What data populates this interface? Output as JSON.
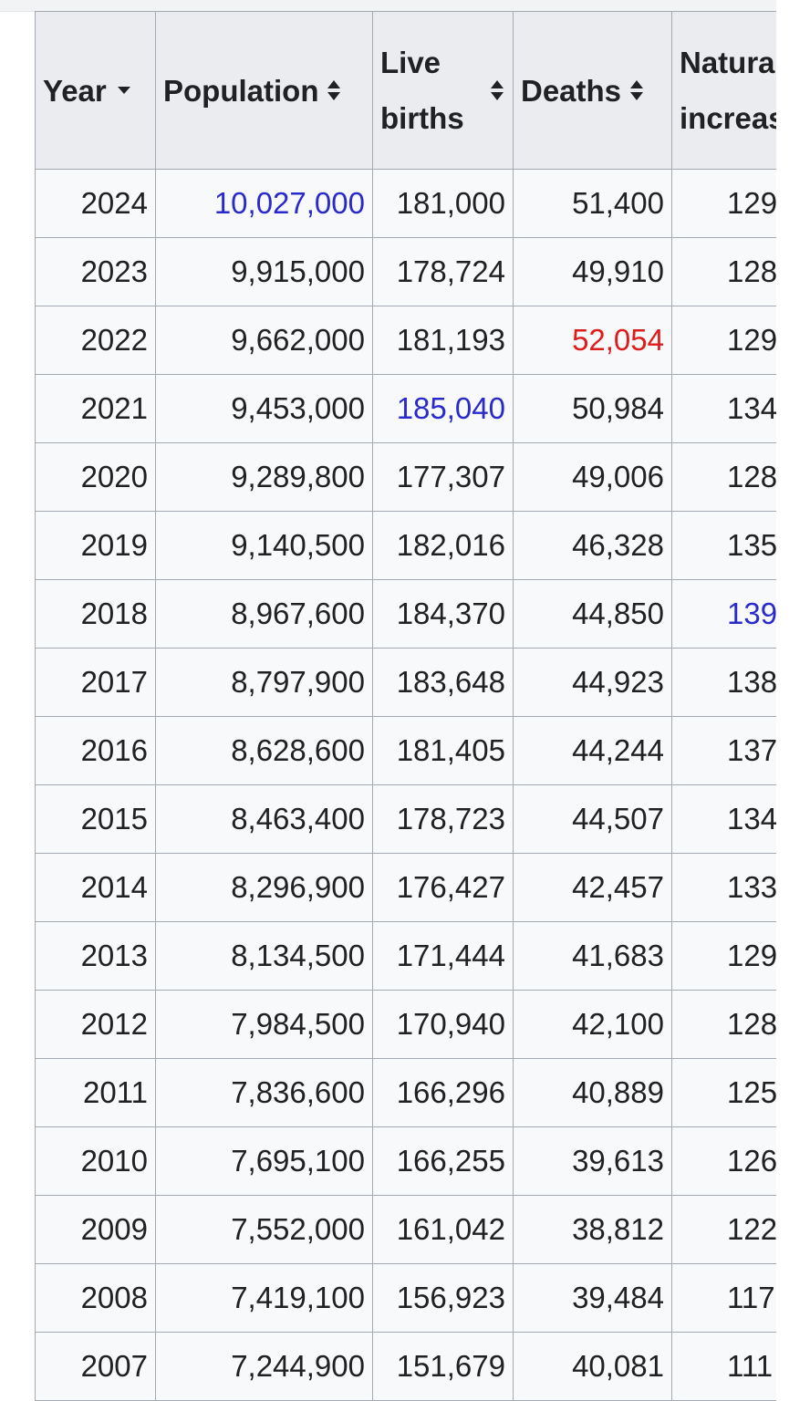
{
  "columns": {
    "year": "Year",
    "population": "Population",
    "births_line1": "Live",
    "births_line2": "births",
    "deaths": "Deaths",
    "natural_line1": "Natura",
    "natural_line2": "increas"
  },
  "colors": {
    "highlight_blue": "#2a2aca",
    "highlight_red": "#dd1d1d",
    "header_bg": "#eaecf0",
    "border": "#a2a9b1"
  },
  "rows": [
    {
      "year": "2024",
      "population": "10,027,000",
      "births": "181,000",
      "deaths": "51,400",
      "natural": "129"
    },
    {
      "year": "2023",
      "population": "9,915,000",
      "births": "178,724",
      "deaths": "49,910",
      "natural": "128"
    },
    {
      "year": "2022",
      "population": "9,662,000",
      "births": "181,193",
      "deaths": "52,054",
      "natural": "129"
    },
    {
      "year": "2021",
      "population": "9,453,000",
      "births": "185,040",
      "deaths": "50,984",
      "natural": "134"
    },
    {
      "year": "2020",
      "population": "9,289,800",
      "births": "177,307",
      "deaths": "49,006",
      "natural": "128"
    },
    {
      "year": "2019",
      "population": "9,140,500",
      "births": "182,016",
      "deaths": "46,328",
      "natural": "135"
    },
    {
      "year": "2018",
      "population": "8,967,600",
      "births": "184,370",
      "deaths": "44,850",
      "natural": "139"
    },
    {
      "year": "2017",
      "population": "8,797,900",
      "births": "183,648",
      "deaths": "44,923",
      "natural": "138"
    },
    {
      "year": "2016",
      "population": "8,628,600",
      "births": "181,405",
      "deaths": "44,244",
      "natural": "137"
    },
    {
      "year": "2015",
      "population": "8,463,400",
      "births": "178,723",
      "deaths": "44,507",
      "natural": "134"
    },
    {
      "year": "2014",
      "population": "8,296,900",
      "births": "176,427",
      "deaths": "42,457",
      "natural": "133"
    },
    {
      "year": "2013",
      "population": "8,134,500",
      "births": "171,444",
      "deaths": "41,683",
      "natural": "129"
    },
    {
      "year": "2012",
      "population": "7,984,500",
      "births": "170,940",
      "deaths": "42,100",
      "natural": "128"
    },
    {
      "year": "2011",
      "population": "7,836,600",
      "births": "166,296",
      "deaths": "40,889",
      "natural": "125"
    },
    {
      "year": "2010",
      "population": "7,695,100",
      "births": "166,255",
      "deaths": "39,613",
      "natural": "126"
    },
    {
      "year": "2009",
      "population": "7,552,000",
      "births": "161,042",
      "deaths": "38,812",
      "natural": "122"
    },
    {
      "year": "2008",
      "population": "7,419,100",
      "births": "156,923",
      "deaths": "39,484",
      "natural": "117"
    },
    {
      "year": "2007",
      "population": "7,244,900",
      "births": "151,679",
      "deaths": "40,081",
      "natural": "111"
    }
  ]
}
